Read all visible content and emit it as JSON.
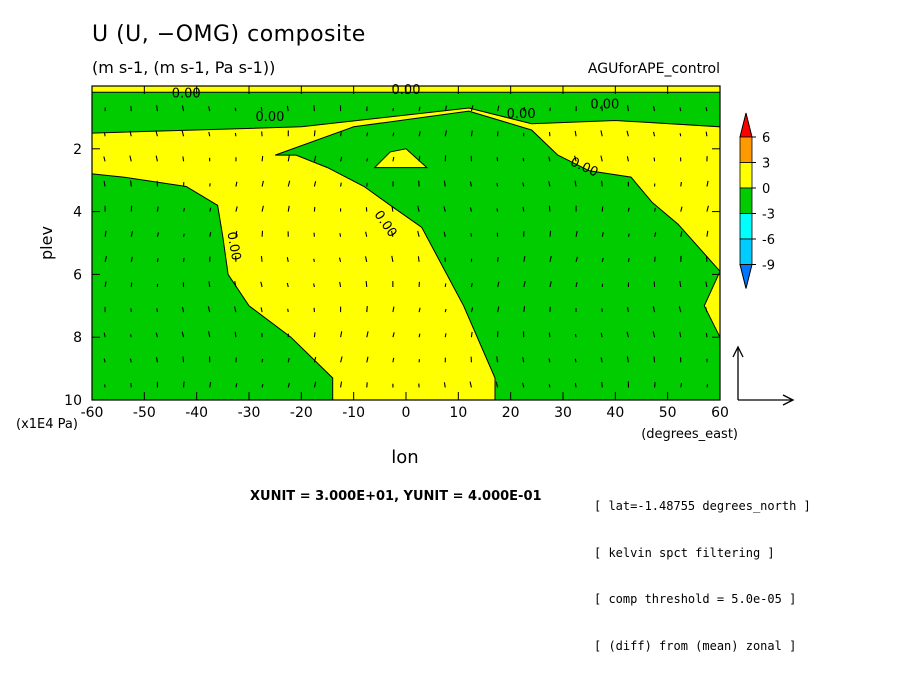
{
  "title": "U (U, −OMG) composite",
  "subtitle": "(m s-1, (m s-1, Pa s-1))",
  "dataset": "AGUforAPE_control",
  "unit_text": "XUNIT = 3.000E+01, YUNIT = 4.000E-01",
  "info_lines": [
    "[ lat=-1.48755 degrees_north ]",
    "[ kelvin spct filtering ]",
    "[ comp threshold = 5.0e-05 ]",
    "[ (diff) from (mean) zonal ]"
  ],
  "colors": {
    "positive": "#ffff00",
    "negative": "#00cc00",
    "level_6_plus": "#ff0000",
    "level_3_6": "#ff9900",
    "level_0_3": "#ffff00",
    "level_m3_0": "#00cc00",
    "level_m6_m3": "#00ffff",
    "level_m9_m6": "#00ccff",
    "level_below_m9": "#0077ff"
  },
  "chart_data": {
    "type": "heatmap",
    "subtype": "shaded contour with vector overlay",
    "xlabel": "lon",
    "xunit": "(degrees_east)",
    "ylabel": "plev",
    "yunit": "(x1E4 Pa)",
    "xlim": [
      -60,
      60
    ],
    "ylim": [
      10,
      0
    ],
    "y_reversed": true,
    "x_ticks": [
      -60,
      -50,
      -40,
      -30,
      -20,
      -10,
      0,
      10,
      20,
      30,
      40,
      50,
      60
    ],
    "y_ticks": [
      2,
      4,
      6,
      8,
      10
    ],
    "colorbar": {
      "levels": [
        6,
        3,
        0,
        -3,
        -6,
        -9
      ],
      "labels": [
        "6",
        "3",
        "0",
        "-3",
        "-6",
        "-9"
      ]
    },
    "contour_labels": [
      "0.00",
      "0.00",
      "0.00",
      "0.00",
      "0.00",
      "0.00",
      "0.00",
      "0.00"
    ],
    "regions": [
      {
        "sign": "negative",
        "boundary": [
          [
            -60,
            0.2
          ],
          [
            60,
            0.2
          ],
          [
            60,
            1.3
          ],
          [
            40,
            1.1
          ],
          [
            24,
            1.2
          ],
          [
            12,
            0.7
          ],
          [
            -20,
            1.3
          ],
          [
            -60,
            1.5
          ]
        ]
      },
      {
        "sign": "negative",
        "boundary": [
          [
            -60,
            2.8
          ],
          [
            -54,
            2.9
          ],
          [
            -42,
            3.2
          ],
          [
            -36,
            3.8
          ],
          [
            -35,
            4.8
          ],
          [
            -34,
            6.0
          ],
          [
            -30,
            7.0
          ],
          [
            -22,
            8.0
          ],
          [
            -14,
            9.3
          ],
          [
            -14,
            10
          ],
          [
            -60,
            10
          ]
        ]
      },
      {
        "sign": "negative",
        "boundary": [
          [
            -25,
            2.2
          ],
          [
            -10,
            1.3
          ],
          [
            12,
            0.8
          ],
          [
            24,
            1.4
          ],
          [
            29,
            2.2
          ],
          [
            35,
            2.7
          ],
          [
            43,
            2.9
          ],
          [
            47,
            3.7
          ],
          [
            52,
            4.4
          ],
          [
            60,
            5.9
          ],
          [
            57,
            7.0
          ],
          [
            60,
            8.0
          ],
          [
            60,
            10
          ],
          [
            17,
            10
          ],
          [
            17,
            9.3
          ],
          [
            11,
            7.0
          ],
          [
            3,
            4.5
          ],
          [
            -3,
            3.8
          ],
          [
            -8,
            3.2
          ],
          [
            -15,
            2.6
          ],
          [
            -21,
            2.2
          ]
        ]
      },
      {
        "sign": "positive",
        "boundary": [
          [
            -6,
            2.6
          ],
          [
            -3,
            2.1
          ],
          [
            0,
            2.0
          ],
          [
            2,
            2.3
          ],
          [
            4,
            2.6
          ]
        ]
      }
    ],
    "wind_vectors_note": "vector field (U, -OMG) overlaid on grid every 5 degrees lon and 0.8 plev"
  }
}
